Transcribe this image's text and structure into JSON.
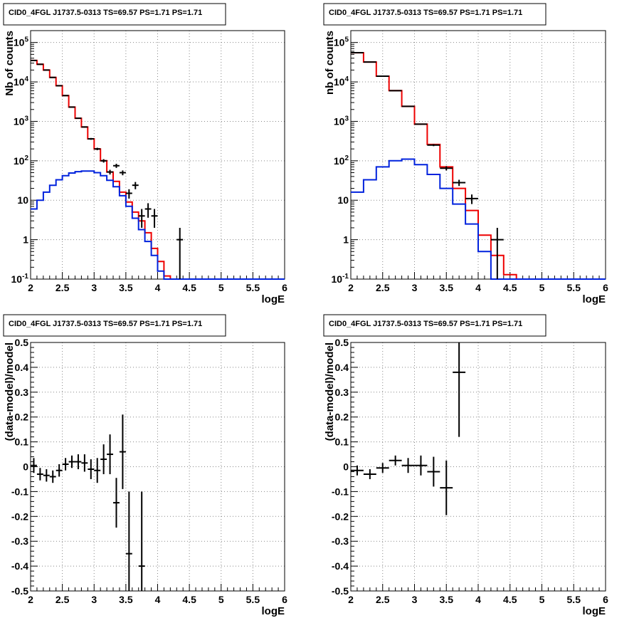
{
  "panels": [
    {
      "id": "tl",
      "title": "CID0_4FGL J1737.5-0313 TS=69.57 PS=1.71 PS=1.71",
      "xlabel": "logE",
      "ylabel": "Nb of counts",
      "ylog": true,
      "x_ticks": [
        "2",
        "2.5",
        "3",
        "3.5",
        "4",
        "4.5",
        "5",
        "5.5",
        "6"
      ],
      "y_ticks": [
        "10^-1",
        "1",
        "10",
        "10^2",
        "10^3",
        "10^4",
        "10^5"
      ]
    },
    {
      "id": "tr",
      "title": "CID0_4FGL J1737.5-0313 TS=69.57 PS=1.71 PS=1.71",
      "xlabel": "logE",
      "ylabel": "nb of counts",
      "ylog": true,
      "x_ticks": [
        "2",
        "2.5",
        "3",
        "3.5",
        "4",
        "4.5",
        "5",
        "5.5",
        "6"
      ],
      "y_ticks": [
        "10^-1",
        "1",
        "10",
        "10^2",
        "10^3",
        "10^4",
        "10^5"
      ]
    },
    {
      "id": "bl",
      "title": "CID0_4FGL J1737.5-0313 TS=69.57 PS=1.71 PS=1.71",
      "xlabel": "logE",
      "ylabel": "(data-model)/model",
      "ylog": false,
      "x_ticks": [
        "2",
        "2.5",
        "3",
        "3.5",
        "4",
        "4.5",
        "5",
        "5.5",
        "6"
      ],
      "y_ticks": [
        "-0.5",
        "-0.4",
        "-0.3",
        "-0.2",
        "-0.1",
        "0",
        "0.1",
        "0.2",
        "0.3",
        "0.4",
        "0.5"
      ]
    },
    {
      "id": "br",
      "title": "CID0_4FGL J1737.5-0313 TS=69.57 PS=1.71 PS=1.71",
      "xlabel": "logE",
      "ylabel": "(data-model)/model",
      "ylog": false,
      "x_ticks": [
        "2",
        "2.5",
        "3",
        "3.5",
        "4",
        "4.5",
        "5",
        "5.5",
        "6"
      ],
      "y_ticks": [
        "-0.5",
        "-0.4",
        "-0.3",
        "-0.2",
        "-0.1",
        "0",
        "0.1",
        "0.2",
        "0.3",
        "0.4",
        "0.5"
      ]
    }
  ],
  "colors": {
    "total_model": "#ee0000",
    "source_model": "#0022dd",
    "data": "#000000",
    "grid": "#888888"
  },
  "chart_data": [
    {
      "type": "line",
      "title": "CID0_4FGL J1737.5-0313 TS=69.57 PS=1.71 PS=1.71",
      "xlabel": "logE",
      "ylabel": "Nb of counts",
      "xlim": [
        2,
        6
      ],
      "ylim": [
        0.1,
        200000
      ],
      "yscale": "log",
      "grid": true,
      "bin_edges": [
        2.0,
        2.1,
        2.2,
        2.3,
        2.4,
        2.5,
        2.6,
        2.7,
        2.8,
        2.9,
        3.0,
        3.1,
        3.2,
        3.3,
        3.4,
        3.5,
        3.6,
        3.7,
        3.8,
        3.9,
        4.0,
        4.1,
        4.2,
        4.3,
        4.4,
        4.5,
        4.6,
        4.7,
        4.8,
        4.9,
        5.0,
        5.1,
        5.2,
        5.3,
        5.4,
        5.5,
        5.6,
        5.7,
        5.8,
        5.9,
        6.0
      ],
      "series": [
        {
          "style": "step",
          "color": "#ee0000",
          "values": [
            35000,
            28000,
            20000,
            13000,
            8000,
            4500,
            2300,
            1200,
            720,
            360,
            200,
            100,
            52,
            30,
            16,
            9,
            5,
            3,
            1.5,
            0.6,
            0.28,
            0.12,
            0.1,
            0.1,
            0.1,
            0.1,
            0.1,
            0.1,
            0.1,
            0.1,
            0.1,
            0.1,
            0.1,
            0.1,
            0.1,
            0.1,
            0.1,
            0.1,
            0.1,
            0.1
          ]
        },
        {
          "style": "step",
          "color": "#0022dd",
          "values": [
            6,
            10,
            16,
            24,
            33,
            42,
            49,
            53,
            55,
            55,
            50,
            42,
            32,
            22,
            13,
            7,
            3.5,
            1.8,
            0.9,
            0.4,
            0.16,
            0.1,
            0.1,
            0.1,
            0.1,
            0.1,
            0.1,
            0.1,
            0.1,
            0.1,
            0.1,
            0.1,
            0.1,
            0.1,
            0.1,
            0.1,
            0.1,
            0.1,
            0.1,
            0.1
          ]
        },
        {
          "style": "errorbar",
          "color": "#000000",
          "points": [
            {
              "x": 2.05,
              "y": 35000,
              "ylo": 34600,
              "yhi": 35400
            },
            {
              "x": 2.15,
              "y": 28000,
              "ylo": 27600,
              "yhi": 28400
            },
            {
              "x": 2.25,
              "y": 20000,
              "ylo": 19700,
              "yhi": 20300
            },
            {
              "x": 2.35,
              "y": 13000,
              "ylo": 12800,
              "yhi": 13200
            },
            {
              "x": 2.45,
              "y": 8000,
              "ylo": 7900,
              "yhi": 8100
            },
            {
              "x": 2.55,
              "y": 4500,
              "ylo": 4430,
              "yhi": 4570
            },
            {
              "x": 2.65,
              "y": 2300,
              "ylo": 2250,
              "yhi": 2350
            },
            {
              "x": 2.75,
              "y": 1200,
              "ylo": 1165,
              "yhi": 1235
            },
            {
              "x": 2.85,
              "y": 720,
              "ylo": 693,
              "yhi": 747
            },
            {
              "x": 2.95,
              "y": 360,
              "ylo": 341,
              "yhi": 379
            },
            {
              "x": 3.05,
              "y": 200,
              "ylo": 186,
              "yhi": 214
            },
            {
              "x": 3.15,
              "y": 100,
              "ylo": 90,
              "yhi": 110
            },
            {
              "x": 3.25,
              "y": 52,
              "ylo": 45,
              "yhi": 59
            },
            {
              "x": 3.35,
              "y": 75,
              "ylo": 66,
              "yhi": 84
            },
            {
              "x": 3.45,
              "y": 50,
              "ylo": 43,
              "yhi": 57
            },
            {
              "x": 3.55,
              "y": 15,
              "ylo": 11,
              "yhi": 19
            },
            {
              "x": 3.65,
              "y": 24,
              "ylo": 19,
              "yhi": 29
            },
            {
              "x": 3.75,
              "y": 4,
              "ylo": 2,
              "yhi": 6
            },
            {
              "x": 3.85,
              "y": 6,
              "ylo": 3.6,
              "yhi": 8.4
            },
            {
              "x": 3.95,
              "y": 4,
              "ylo": 2,
              "yhi": 6
            },
            {
              "x": 4.35,
              "y": 1,
              "ylo": 0.1,
              "yhi": 2
            }
          ]
        }
      ]
    },
    {
      "type": "line",
      "title": "CID0_4FGL J1737.5-0313 TS=69.57 PS=1.71 PS=1.71",
      "xlabel": "logE",
      "ylabel": "nb of counts",
      "xlim": [
        2,
        6
      ],
      "ylim": [
        0.1,
        200000
      ],
      "yscale": "log",
      "grid": true,
      "bin_edges": [
        2.0,
        2.2,
        2.4,
        2.6,
        2.8,
        3.0,
        3.2,
        3.4,
        3.6,
        3.8,
        4.0,
        4.2,
        4.4,
        4.6,
        4.8,
        5.0,
        5.2,
        5.4,
        5.6,
        5.8,
        6.0
      ],
      "series": [
        {
          "style": "step",
          "color": "#ee0000",
          "values": [
            55000,
            32000,
            14000,
            6000,
            2400,
            850,
            260,
            70,
            20,
            5.5,
            1.3,
            0.4,
            0.13,
            0.1,
            0.1,
            0.1,
            0.1,
            0.1,
            0.1,
            0.1
          ]
        },
        {
          "style": "step",
          "color": "#0022dd",
          "values": [
            16,
            33,
            70,
            100,
            110,
            80,
            45,
            20,
            8,
            2.5,
            0.5,
            0.1,
            0.1,
            0.1,
            0.1,
            0.1,
            0.1,
            0.1,
            0.1,
            0.1
          ]
        },
        {
          "style": "errorbar",
          "color": "#000000",
          "points": [
            {
              "x": 2.1,
              "y": 55000,
              "ylo": 54500,
              "yhi": 55500
            },
            {
              "x": 2.3,
              "y": 32000,
              "ylo": 31600,
              "yhi": 32400
            },
            {
              "x": 2.5,
              "y": 14000,
              "ylo": 13800,
              "yhi": 14200
            },
            {
              "x": 2.7,
              "y": 6000,
              "ylo": 5900,
              "yhi": 6100
            },
            {
              "x": 2.9,
              "y": 2400,
              "ylo": 2350,
              "yhi": 2450
            },
            {
              "x": 3.1,
              "y": 850,
              "ylo": 820,
              "yhi": 880
            },
            {
              "x": 3.3,
              "y": 250,
              "ylo": 235,
              "yhi": 265
            },
            {
              "x": 3.5,
              "y": 65,
              "ylo": 57,
              "yhi": 73
            },
            {
              "x": 3.7,
              "y": 28,
              "ylo": 23,
              "yhi": 33
            },
            {
              "x": 3.9,
              "y": 11,
              "ylo": 8,
              "yhi": 14
            },
            {
              "x": 4.3,
              "y": 1,
              "ylo": 0.1,
              "yhi": 2
            }
          ]
        }
      ]
    },
    {
      "type": "scatter",
      "title": "CID0_4FGL J1737.5-0313 TS=69.57 PS=1.71 PS=1.71",
      "xlabel": "logE",
      "ylabel": "(data-model)/model",
      "xlim": [
        2,
        6
      ],
      "ylim": [
        -0.5,
        0.5
      ],
      "grid": true,
      "series": [
        {
          "style": "errorbar",
          "color": "#000000",
          "xhalfwidth": 0.05,
          "points": [
            {
              "x": 2.05,
              "y": 0.005,
              "err": 0.03
            },
            {
              "x": 2.15,
              "y": -0.03,
              "err": 0.025
            },
            {
              "x": 2.25,
              "y": -0.035,
              "err": 0.025
            },
            {
              "x": 2.35,
              "y": -0.04,
              "err": 0.025
            },
            {
              "x": 2.45,
              "y": -0.015,
              "err": 0.025
            },
            {
              "x": 2.55,
              "y": 0.01,
              "err": 0.025
            },
            {
              "x": 2.65,
              "y": 0.02,
              "err": 0.025
            },
            {
              "x": 2.75,
              "y": 0.02,
              "err": 0.03
            },
            {
              "x": 2.85,
              "y": 0.015,
              "err": 0.035
            },
            {
              "x": 2.95,
              "y": -0.01,
              "err": 0.04
            },
            {
              "x": 3.05,
              "y": -0.015,
              "err": 0.05
            },
            {
              "x": 3.15,
              "y": 0.03,
              "err": 0.06
            },
            {
              "x": 3.25,
              "y": 0.05,
              "err": 0.08
            },
            {
              "x": 3.35,
              "y": -0.145,
              "err": 0.1
            },
            {
              "x": 3.45,
              "y": 0.06,
              "err": 0.15
            },
            {
              "x": 3.55,
              "y": -0.35,
              "err": 0.25
            },
            {
              "x": 3.75,
              "y": -0.4,
              "err": 0.3
            }
          ]
        }
      ]
    },
    {
      "type": "scatter",
      "title": "CID0_4FGL J1737.5-0313 TS=69.57 PS=1.71 PS=1.71",
      "xlabel": "logE",
      "ylabel": "(data-model)/model",
      "xlim": [
        2,
        6
      ],
      "ylim": [
        -0.5,
        0.5
      ],
      "grid": true,
      "series": [
        {
          "style": "errorbar",
          "color": "#000000",
          "xhalfwidth": 0.1,
          "points": [
            {
              "x": 2.1,
              "y": -0.015,
              "err": 0.02
            },
            {
              "x": 2.3,
              "y": -0.03,
              "err": 0.02
            },
            {
              "x": 2.5,
              "y": -0.005,
              "err": 0.02
            },
            {
              "x": 2.7,
              "y": 0.025,
              "err": 0.02
            },
            {
              "x": 2.9,
              "y": 0.005,
              "err": 0.03
            },
            {
              "x": 3.1,
              "y": 0.005,
              "err": 0.04
            },
            {
              "x": 3.3,
              "y": -0.02,
              "err": 0.06
            },
            {
              "x": 3.5,
              "y": -0.085,
              "err": 0.11
            },
            {
              "x": 3.7,
              "y": 0.38,
              "err": 0.26
            }
          ]
        }
      ]
    }
  ]
}
